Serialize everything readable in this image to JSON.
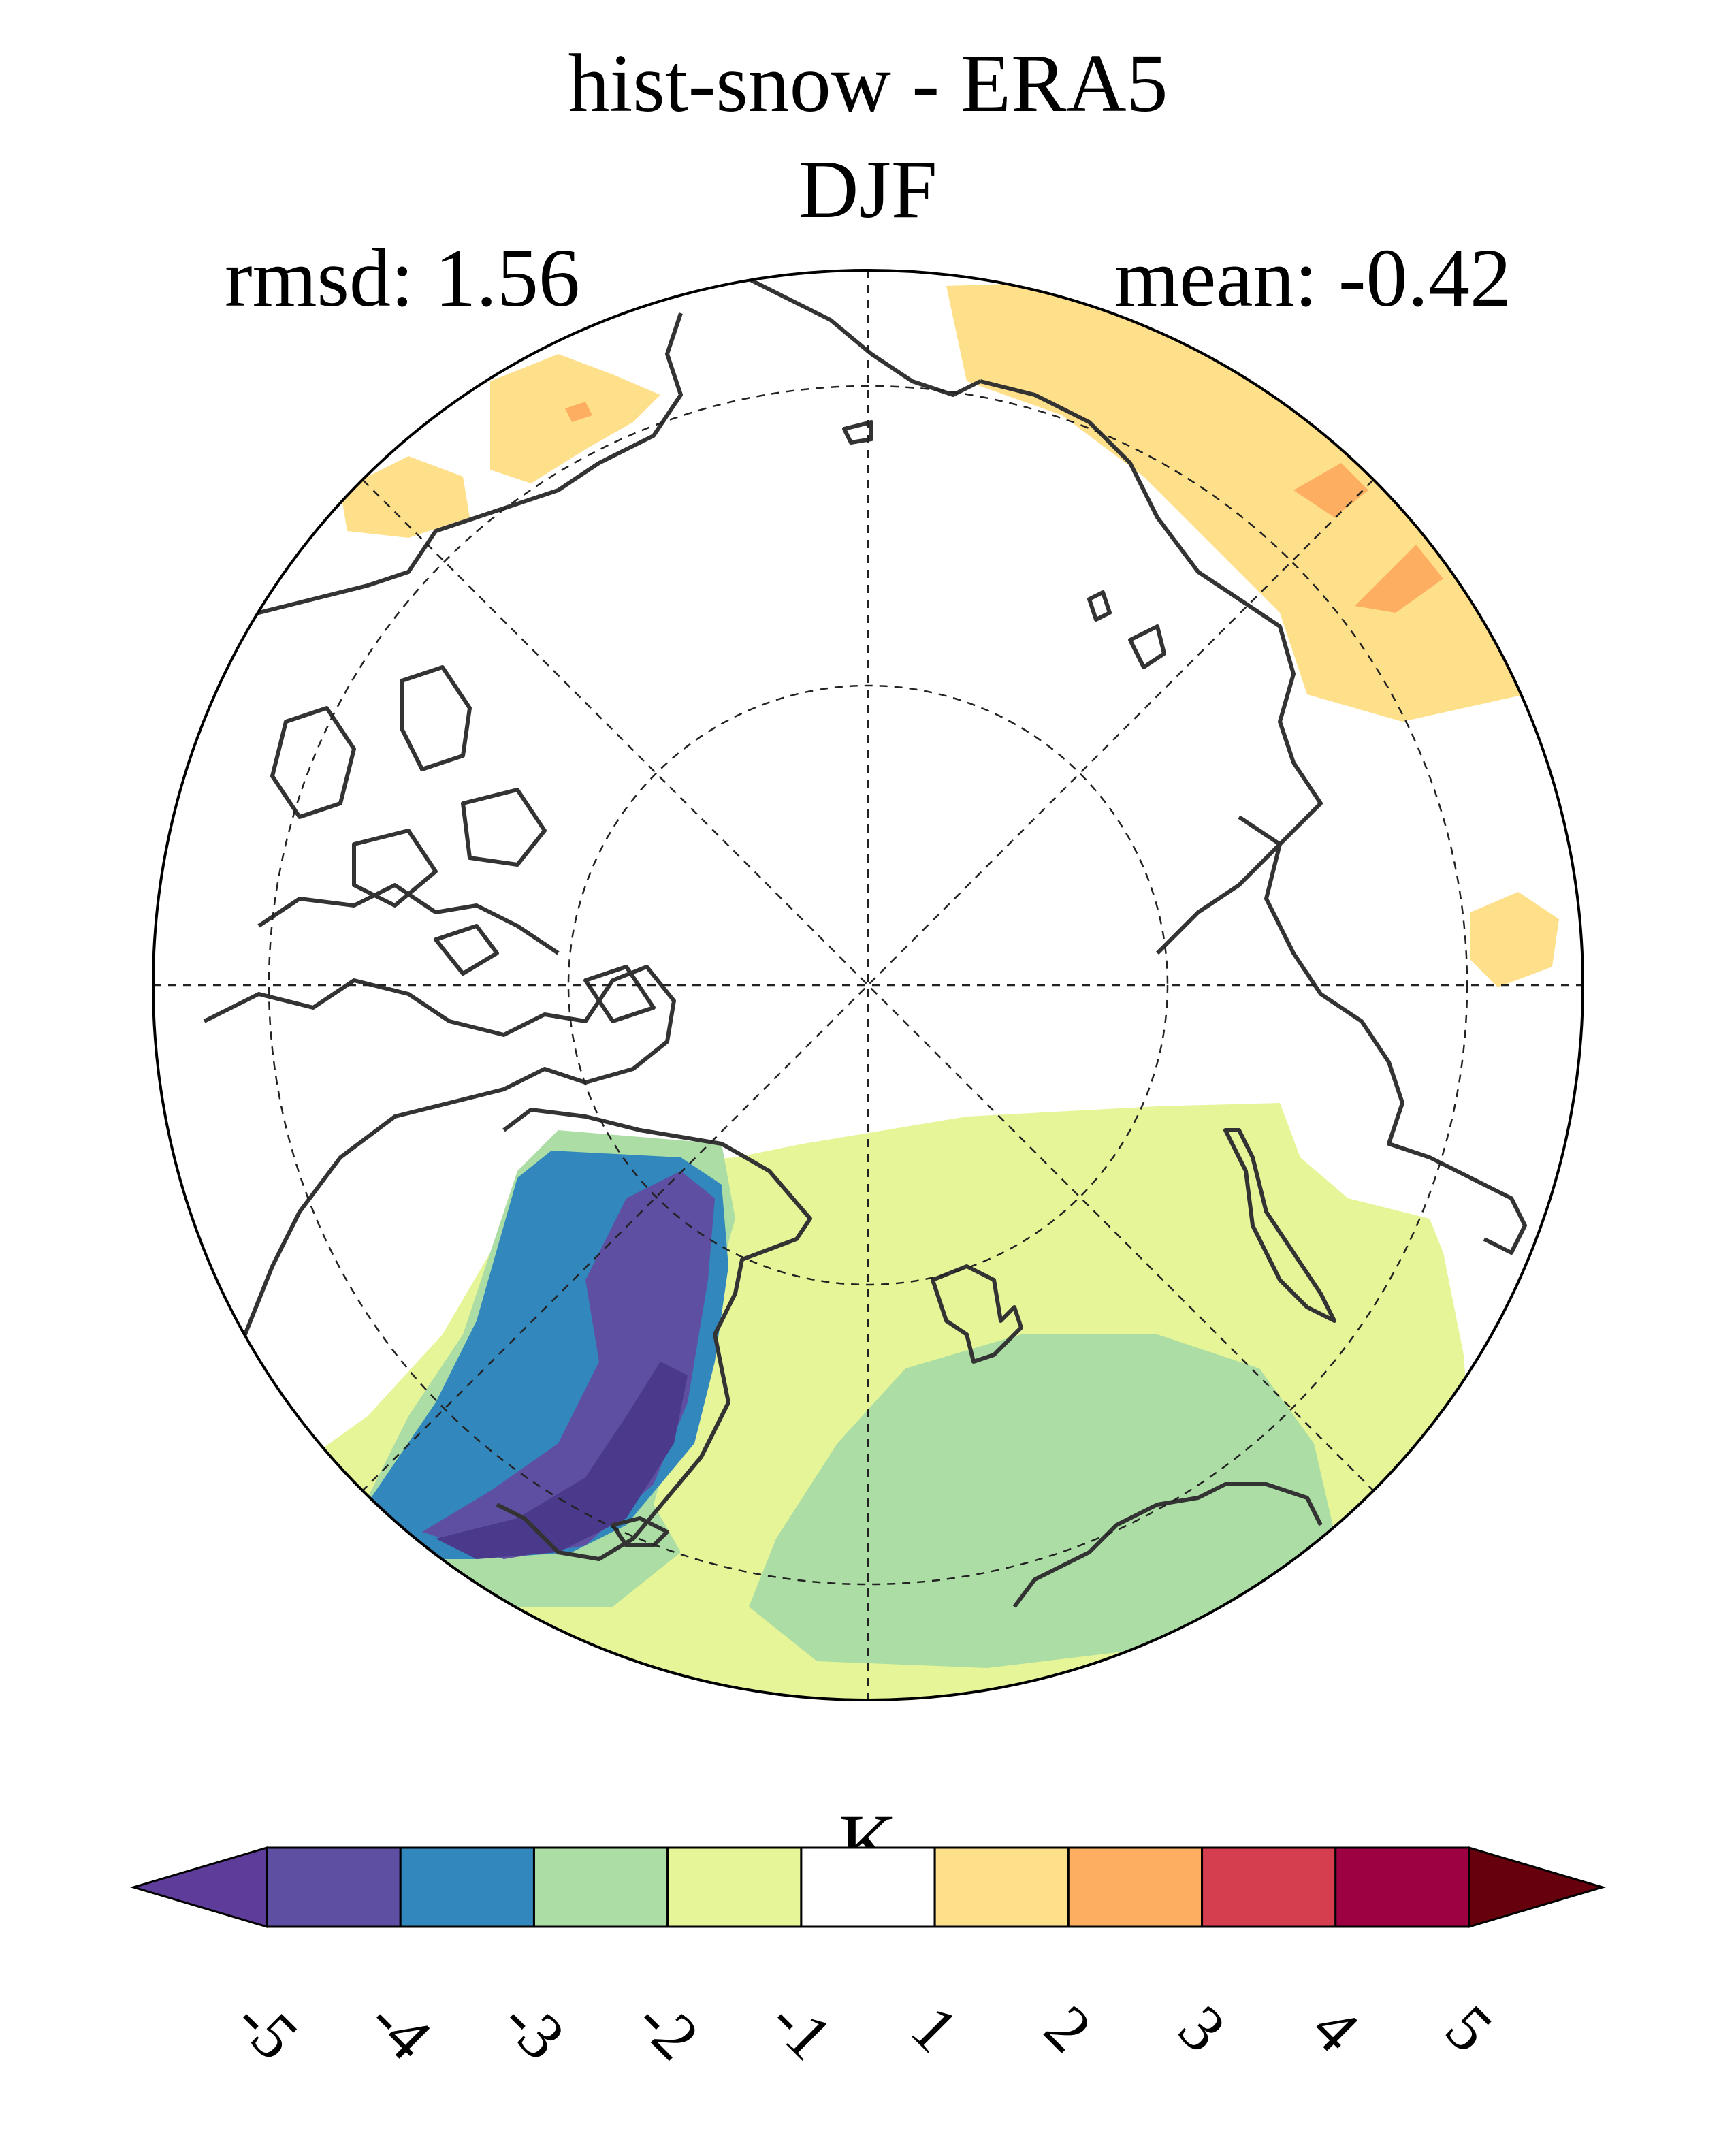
{
  "title": {
    "line1": "hist-snow - ERA5",
    "line2": "DJF"
  },
  "stats": {
    "rmsd": "rmsd: 1.56",
    "mean": "mean: -0.42"
  },
  "map": {
    "projection": "north-polar-stereographic",
    "variable_difference": "hist-snow minus ERA5",
    "season": "DJF"
  },
  "colorbar": {
    "units": "K",
    "ticks": [
      "-5",
      "-4",
      "-3",
      "-2",
      "-1",
      "1",
      "2",
      "3",
      "4",
      "5"
    ],
    "colors": [
      "#5e4fa2",
      "#3288bd",
      "#abdda4",
      "#e6f598",
      "#ffffff",
      "#fee08b",
      "#fdae61",
      "#d53e4f",
      "#9e0142"
    ],
    "under_color": "#5e3c99",
    "over_color": "#67000d"
  }
}
